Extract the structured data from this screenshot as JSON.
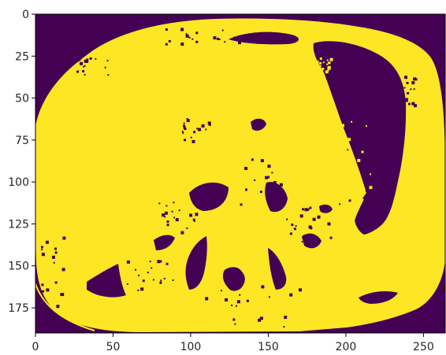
{
  "chart_data": {
    "type": "heatmap",
    "title": "",
    "xlabel": "",
    "ylabel": "",
    "xlim": [
      0,
      264
    ],
    "ylim": [
      190,
      0
    ],
    "x_ticks": [
      0,
      50,
      100,
      150,
      200,
      250
    ],
    "y_ticks": [
      0,
      25,
      50,
      75,
      100,
      125,
      150,
      175
    ],
    "x_tick_labels": [
      "0",
      "50",
      "100",
      "150",
      "200",
      "250"
    ],
    "y_tick_labels": [
      "0",
      "25",
      "50",
      "75",
      "100",
      "125",
      "150",
      "175"
    ],
    "colormap": "viridis",
    "value_colors": {
      "0": "#440154",
      "1": "#fde725"
    },
    "grid": false,
    "binary_mask_description_regions": {
      "foreground_value": 1,
      "background_value": 0
    }
  },
  "colors": {
    "background_value": "#440154",
    "foreground_value": "#fde725",
    "axis": "#000000",
    "tick_text": "#262626"
  }
}
